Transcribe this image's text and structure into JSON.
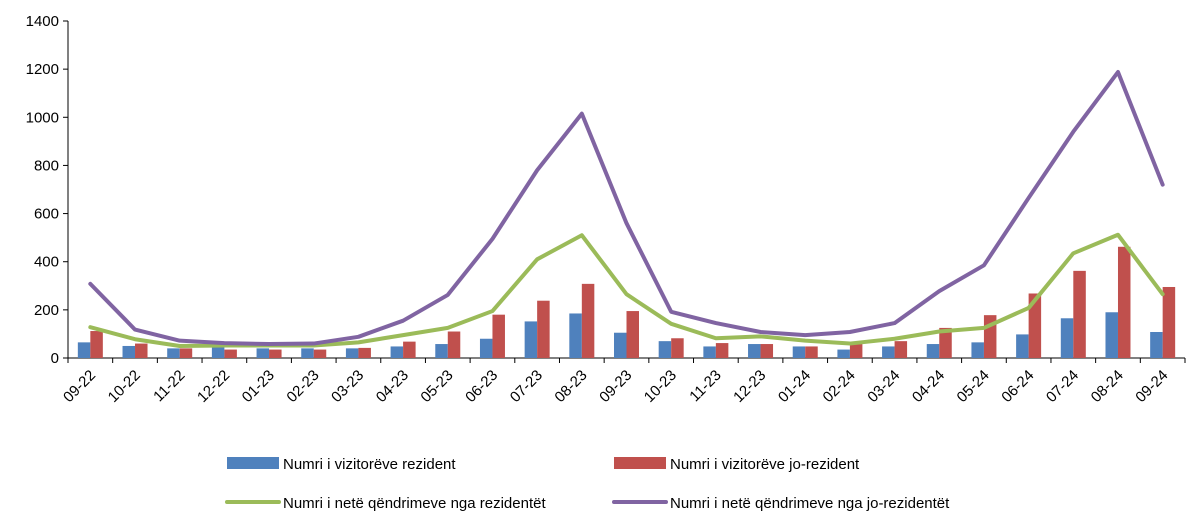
{
  "chart_data": {
    "type": "bar",
    "categories": [
      "09-22",
      "10-22",
      "11-22",
      "12-22",
      "01-23",
      "02-23",
      "03-23",
      "04-23",
      "05-23",
      "06-23",
      "07-23",
      "08-23",
      "09-23",
      "10-23",
      "11-23",
      "12-23",
      "01-24",
      "02-24",
      "03-24",
      "04-24",
      "05-24",
      "06-24",
      "07-24",
      "08-24",
      "09-24"
    ],
    "ylim": [
      0,
      1400
    ],
    "yticks": [
      0,
      200,
      400,
      600,
      800,
      1000,
      1200,
      1400
    ],
    "grid": false,
    "legend_position": "bottom",
    "series": [
      {
        "name": "Numri i vizitorëve rezident",
        "kind": "bar",
        "color": "#4f81bd",
        "values": [
          65,
          50,
          40,
          45,
          40,
          40,
          40,
          48,
          58,
          80,
          152,
          185,
          105,
          70,
          48,
          58,
          48,
          35,
          48,
          58,
          65,
          98,
          165,
          190,
          108
        ]
      },
      {
        "name": "Numri i vizitorëve jo-rezident",
        "kind": "bar",
        "color": "#c0504d",
        "values": [
          112,
          60,
          40,
          35,
          35,
          35,
          42,
          68,
          110,
          180,
          238,
          308,
          195,
          82,
          62,
          58,
          48,
          58,
          70,
          125,
          178,
          268,
          362,
          462,
          295
        ]
      },
      {
        "name": "Numri i netë qëndrimeve nga rezidentët",
        "kind": "line",
        "color": "#9bbb59",
        "values": [
          128,
          78,
          50,
          52,
          52,
          52,
          65,
          95,
          125,
          195,
          410,
          510,
          265,
          142,
          82,
          90,
          72,
          60,
          80,
          110,
          125,
          208,
          435,
          512,
          265
        ]
      },
      {
        "name": "Numri i netë qëndrimeve nga jo-rezidentët",
        "kind": "line",
        "color": "#8064a2",
        "values": [
          308,
          118,
          72,
          62,
          58,
          60,
          88,
          155,
          262,
          495,
          780,
          1015,
          560,
          192,
          145,
          108,
          95,
          108,
          145,
          278,
          385,
          665,
          940,
          1188,
          720
        ]
      }
    ]
  }
}
